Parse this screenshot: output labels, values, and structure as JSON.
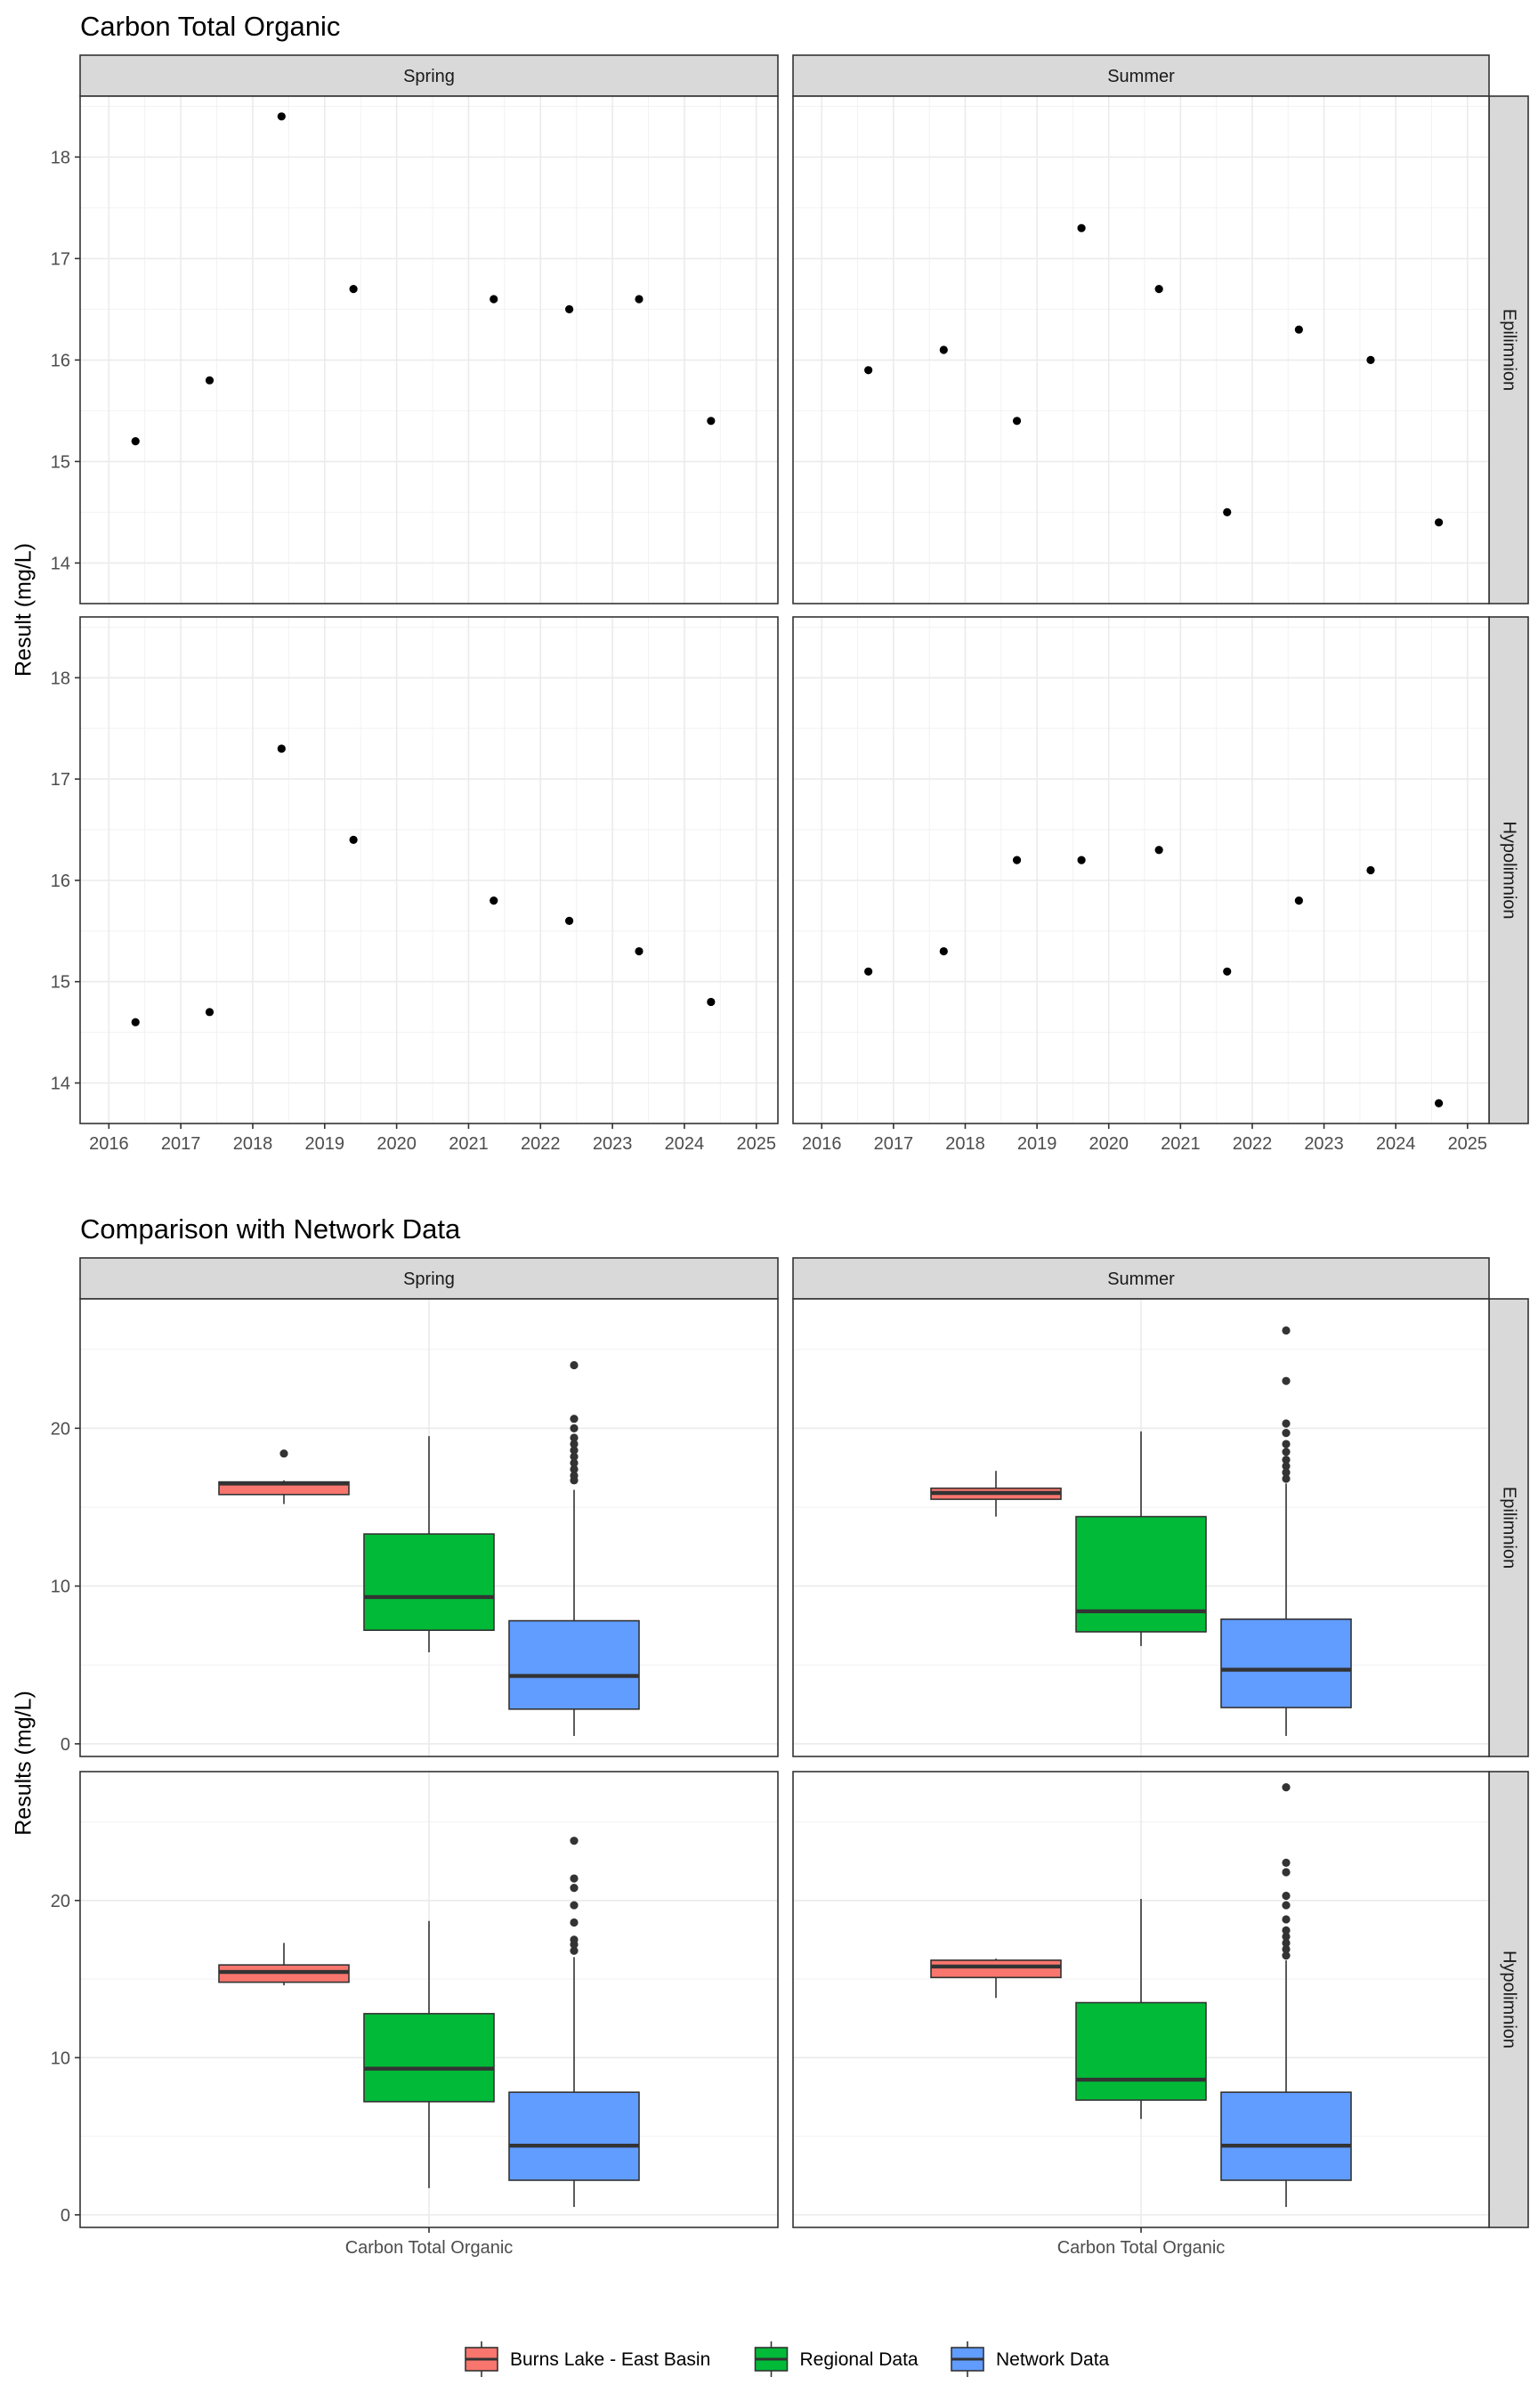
{
  "chart_data": [
    {
      "type": "scatter",
      "title": "Carbon Total Organic",
      "xlabel": "",
      "ylabel": "Result (mg/L)",
      "xlim": [
        2015.6,
        2025.3
      ],
      "ylim": [
        13.6,
        18.6
      ],
      "x_ticks": [
        "2016",
        "2017",
        "2018",
        "2019",
        "2020",
        "2021",
        "2022",
        "2023",
        "2024",
        "2025"
      ],
      "y_ticks": [
        "14",
        "15",
        "16",
        "17",
        "18"
      ],
      "facet_cols": [
        "Spring",
        "Summer"
      ],
      "facet_rows": [
        "Epilimnion",
        "Hypolimnion"
      ],
      "grid": true,
      "panels": [
        {
          "col": "Spring",
          "row": "Epilimnion",
          "points": [
            [
              2016.37,
              15.2
            ],
            [
              2017.4,
              15.8
            ],
            [
              2018.4,
              18.4
            ],
            [
              2019.4,
              16.7
            ],
            [
              2021.35,
              16.6
            ],
            [
              2022.4,
              16.5
            ],
            [
              2023.37,
              16.6
            ],
            [
              2024.37,
              15.4
            ]
          ]
        },
        {
          "col": "Summer",
          "row": "Epilimnion",
          "points": [
            [
              2016.65,
              15.9
            ],
            [
              2017.7,
              16.1
            ],
            [
              2018.72,
              15.4
            ],
            [
              2019.62,
              17.3
            ],
            [
              2020.7,
              16.7
            ],
            [
              2021.65,
              14.5
            ],
            [
              2022.65,
              16.3
            ],
            [
              2023.65,
              16.0
            ],
            [
              2024.6,
              14.4
            ]
          ]
        },
        {
          "col": "Spring",
          "row": "Hypolimnion",
          "points": [
            [
              2016.37,
              14.6
            ],
            [
              2017.4,
              14.7
            ],
            [
              2018.4,
              17.3
            ],
            [
              2019.4,
              16.4
            ],
            [
              2021.35,
              15.8
            ],
            [
              2022.4,
              15.6
            ],
            [
              2023.37,
              15.3
            ],
            [
              2024.37,
              14.8
            ]
          ]
        },
        {
          "col": "Summer",
          "row": "Hypolimnion",
          "points": [
            [
              2016.65,
              15.1
            ],
            [
              2017.7,
              15.3
            ],
            [
              2018.72,
              16.2
            ],
            [
              2019.62,
              16.2
            ],
            [
              2020.7,
              16.3
            ],
            [
              2021.65,
              15.1
            ],
            [
              2022.65,
              15.8
            ],
            [
              2023.65,
              16.1
            ],
            [
              2024.6,
              13.8
            ]
          ]
        }
      ]
    },
    {
      "type": "box",
      "title": "Comparison with Network Data",
      "xlabel": "",
      "ylabel": "Results (mg/L)",
      "category": "Carbon Total Organic",
      "ylim": [
        -0.8,
        28.2
      ],
      "y_ticks": [
        "0",
        "10",
        "20"
      ],
      "facet_cols": [
        "Spring",
        "Summer"
      ],
      "facet_rows": [
        "Epilimnion",
        "Hypolimnion"
      ],
      "grid": true,
      "legend": {
        "position": "bottom",
        "entries": [
          {
            "name": "Burns Lake - East Basin",
            "color": "#F8766D"
          },
          {
            "name": "Regional Data",
            "color": "#00BA38"
          },
          {
            "name": "Network Data",
            "color": "#619CFF"
          }
        ]
      },
      "panels": [
        {
          "col": "Spring",
          "row": "Epilimnion",
          "boxes": [
            {
              "series": "Burns Lake - East Basin",
              "min": 15.2,
              "q1": 15.8,
              "median": 16.5,
              "q3": 16.6,
              "max": 16.7,
              "outliers": [
                18.4
              ]
            },
            {
              "series": "Regional Data",
              "min": 5.8,
              "q1": 7.2,
              "median": 9.3,
              "q3": 13.3,
              "max": 19.5,
              "outliers": []
            },
            {
              "series": "Network Data",
              "min": 0.5,
              "q1": 2.2,
              "median": 4.3,
              "q3": 7.8,
              "max": 16.1,
              "outliers": [
                16.7,
                17.0,
                17.4,
                17.8,
                18.2,
                18.6,
                19.0,
                19.4,
                20.0,
                20.6,
                24.0
              ]
            }
          ]
        },
        {
          "col": "Summer",
          "row": "Epilimnion",
          "boxes": [
            {
              "series": "Burns Lake - East Basin",
              "min": 14.4,
              "q1": 15.5,
              "median": 15.9,
              "q3": 16.2,
              "max": 17.3,
              "outliers": []
            },
            {
              "series": "Regional Data",
              "min": 6.2,
              "q1": 7.1,
              "median": 8.4,
              "q3": 14.4,
              "max": 19.8,
              "outliers": []
            },
            {
              "series": "Network Data",
              "min": 0.5,
              "q1": 2.3,
              "median": 4.7,
              "q3": 7.9,
              "max": 16.5,
              "outliers": [
                16.8,
                17.2,
                17.6,
                18.0,
                18.5,
                19.0,
                19.7,
                20.3,
                23.0,
                26.2
              ]
            }
          ]
        },
        {
          "col": "Spring",
          "row": "Hypolimnion",
          "boxes": [
            {
              "series": "Burns Lake - East Basin",
              "min": 14.6,
              "q1": 14.8,
              "median": 15.45,
              "q3": 15.9,
              "max": 17.3,
              "outliers": []
            },
            {
              "series": "Regional Data",
              "min": 1.7,
              "q1": 7.2,
              "median": 9.3,
              "q3": 12.8,
              "max": 18.7,
              "outliers": []
            },
            {
              "series": "Network Data",
              "min": 0.5,
              "q1": 2.2,
              "median": 4.4,
              "q3": 7.8,
              "max": 16.4,
              "outliers": [
                16.8,
                17.2,
                17.5,
                18.6,
                19.7,
                20.8,
                21.4,
                23.8
              ]
            }
          ]
        },
        {
          "col": "Summer",
          "row": "Hypolimnion",
          "boxes": [
            {
              "series": "Burns Lake - East Basin",
              "min": 13.8,
              "q1": 15.1,
              "median": 15.8,
              "q3": 16.2,
              "max": 16.3,
              "outliers": []
            },
            {
              "series": "Regional Data",
              "min": 6.1,
              "q1": 7.3,
              "median": 8.6,
              "q3": 13.5,
              "max": 20.1,
              "outliers": []
            },
            {
              "series": "Network Data",
              "min": 0.5,
              "q1": 2.2,
              "median": 4.4,
              "q3": 7.8,
              "max": 16.2,
              "outliers": [
                16.5,
                16.9,
                17.3,
                17.7,
                18.1,
                18.8,
                19.7,
                20.3,
                21.8,
                22.4,
                27.2
              ]
            }
          ]
        }
      ]
    }
  ]
}
